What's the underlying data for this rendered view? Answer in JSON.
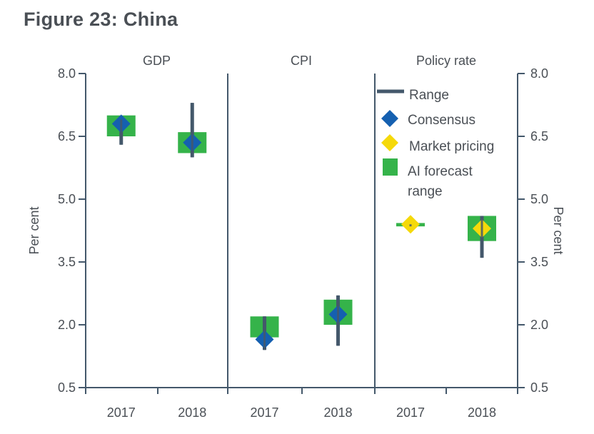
{
  "figure_title": "Figure 23: China",
  "colors": {
    "range": "#44586b",
    "consensus": "#1560b0",
    "market_pricing": "#f5d90a",
    "ai_forecast": "#35b34a",
    "axis": "#44586b",
    "text": "#4a4f55"
  },
  "chart_data": {
    "type": "range-dot",
    "ylim": [
      0.5,
      8.0
    ],
    "yticks": [
      "0.5",
      "2.0",
      "3.5",
      "5.0",
      "6.5",
      "8.0"
    ],
    "ytick_values": [
      0.5,
      2.0,
      3.5,
      5.0,
      6.5,
      8.0
    ],
    "ylabel_left": "Per cent",
    "ylabel_right": "Per cent",
    "grid": false,
    "legend_position": "top-right",
    "legend": {
      "range": "Range",
      "consensus": "Consensus",
      "market_pricing": "Market pricing",
      "ai_forecast_line1": "AI forecast",
      "ai_forecast_line2": "range"
    },
    "panels": [
      {
        "name": "GDP",
        "categories": [
          "2017",
          "2018"
        ],
        "points": [
          {
            "year": "2017",
            "range": [
              6.3,
              6.9
            ],
            "consensus": 6.8,
            "ai_forecast": [
              6.5,
              7.0
            ]
          },
          {
            "year": "2018",
            "range": [
              6.0,
              7.3
            ],
            "consensus": 6.35,
            "ai_forecast": [
              6.1,
              6.6
            ]
          }
        ]
      },
      {
        "name": "CPI",
        "categories": [
          "2017",
          "2018"
        ],
        "points": [
          {
            "year": "2017",
            "range": [
              1.4,
              2.2
            ],
            "consensus": 1.65,
            "ai_forecast": [
              1.7,
              2.2
            ]
          },
          {
            "year": "2018",
            "range": [
              1.5,
              2.7
            ],
            "consensus": 2.25,
            "ai_forecast": [
              2.0,
              2.6
            ]
          }
        ]
      },
      {
        "name": "Policy rate",
        "categories": [
          "2017",
          "2018"
        ],
        "points": [
          {
            "year": "2017",
            "range": [
              4.35,
              4.4
            ],
            "market_pricing": 4.4,
            "ai_forecast": [
              4.35,
              4.43
            ]
          },
          {
            "year": "2018",
            "range": [
              3.6,
              4.6
            ],
            "market_pricing": 4.3,
            "ai_forecast": [
              4.0,
              4.6
            ]
          }
        ]
      }
    ]
  }
}
